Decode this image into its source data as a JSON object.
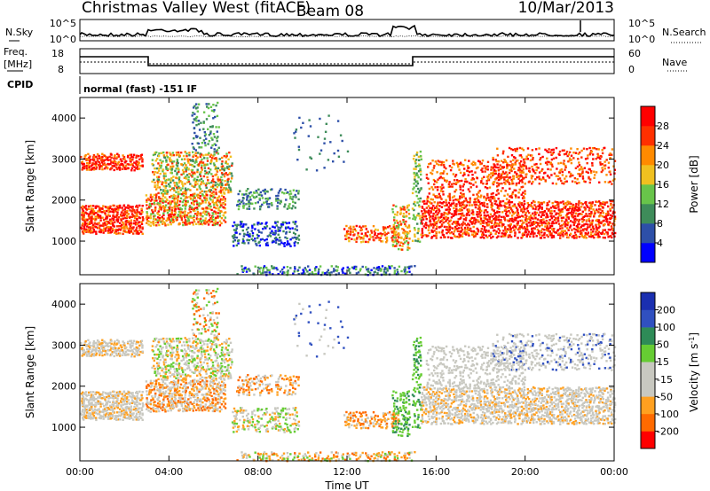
{
  "header": {
    "station": "Christmas Valley West (fitACF)",
    "beam": "Beam 08",
    "date": "10/Mar/2013"
  },
  "strip_noise": {
    "left_label": "N.Sky",
    "right_label": "N.Search",
    "left_ticks": [
      "10^5",
      "10^0"
    ],
    "right_ticks": [
      "10^5",
      "10^0"
    ]
  },
  "strip_freq": {
    "left_label_1": "Freq.",
    "left_label_2": "[MHz]",
    "right_label": "Nave",
    "left_ticks": [
      "18",
      "8"
    ],
    "right_ticks": [
      "60",
      "0"
    ]
  },
  "cpid": {
    "label": "CPID",
    "text": "normal (fast) -151 IF"
  },
  "colors": {
    "power": [
      "#0000ff",
      "#2d4fa8",
      "#3e8c5a",
      "#68c44a",
      "#f0c020",
      "#ff8a00",
      "#ff3000",
      "#ff0000"
    ],
    "velocity": [
      "#ff0000",
      "#ff6a00",
      "#ffa020",
      "#c8c8c0",
      "#c8c8c0",
      "#66cc33",
      "#2e8b57",
      "#3050c0",
      "#1a2fb0"
    ]
  },
  "chart_data": [
    {
      "type": "heatmap",
      "ylabel": "Slant Range [km]",
      "y_ticks": [
        "1000",
        "2000",
        "3000",
        "4000"
      ],
      "ylim": [
        180,
        4500
      ],
      "colorbar_label": "Power [dB]",
      "colorbar_ticks": [
        "4",
        "8",
        "12",
        "16",
        "20",
        "24",
        "28"
      ],
      "colorbar_range": [
        0,
        32
      ]
    },
    {
      "type": "heatmap",
      "ylabel": "Slant Range [km]",
      "y_ticks": [
        "1000",
        "2000",
        "3000",
        "4000"
      ],
      "ylim": [
        180,
        4500
      ],
      "colorbar_label": "Velocity [m s^-1]",
      "colorbar_ticks": [
        "200",
        "100",
        "50",
        "15",
        "-15",
        "-50",
        "-100",
        "-200"
      ]
    }
  ],
  "x_axis": {
    "label": "Time UT",
    "ticks": [
      "00:00",
      "04:00",
      "08:00",
      "12:00",
      "16:00",
      "20:00",
      "00:00"
    ],
    "xlim_hours": [
      0,
      24
    ]
  }
}
